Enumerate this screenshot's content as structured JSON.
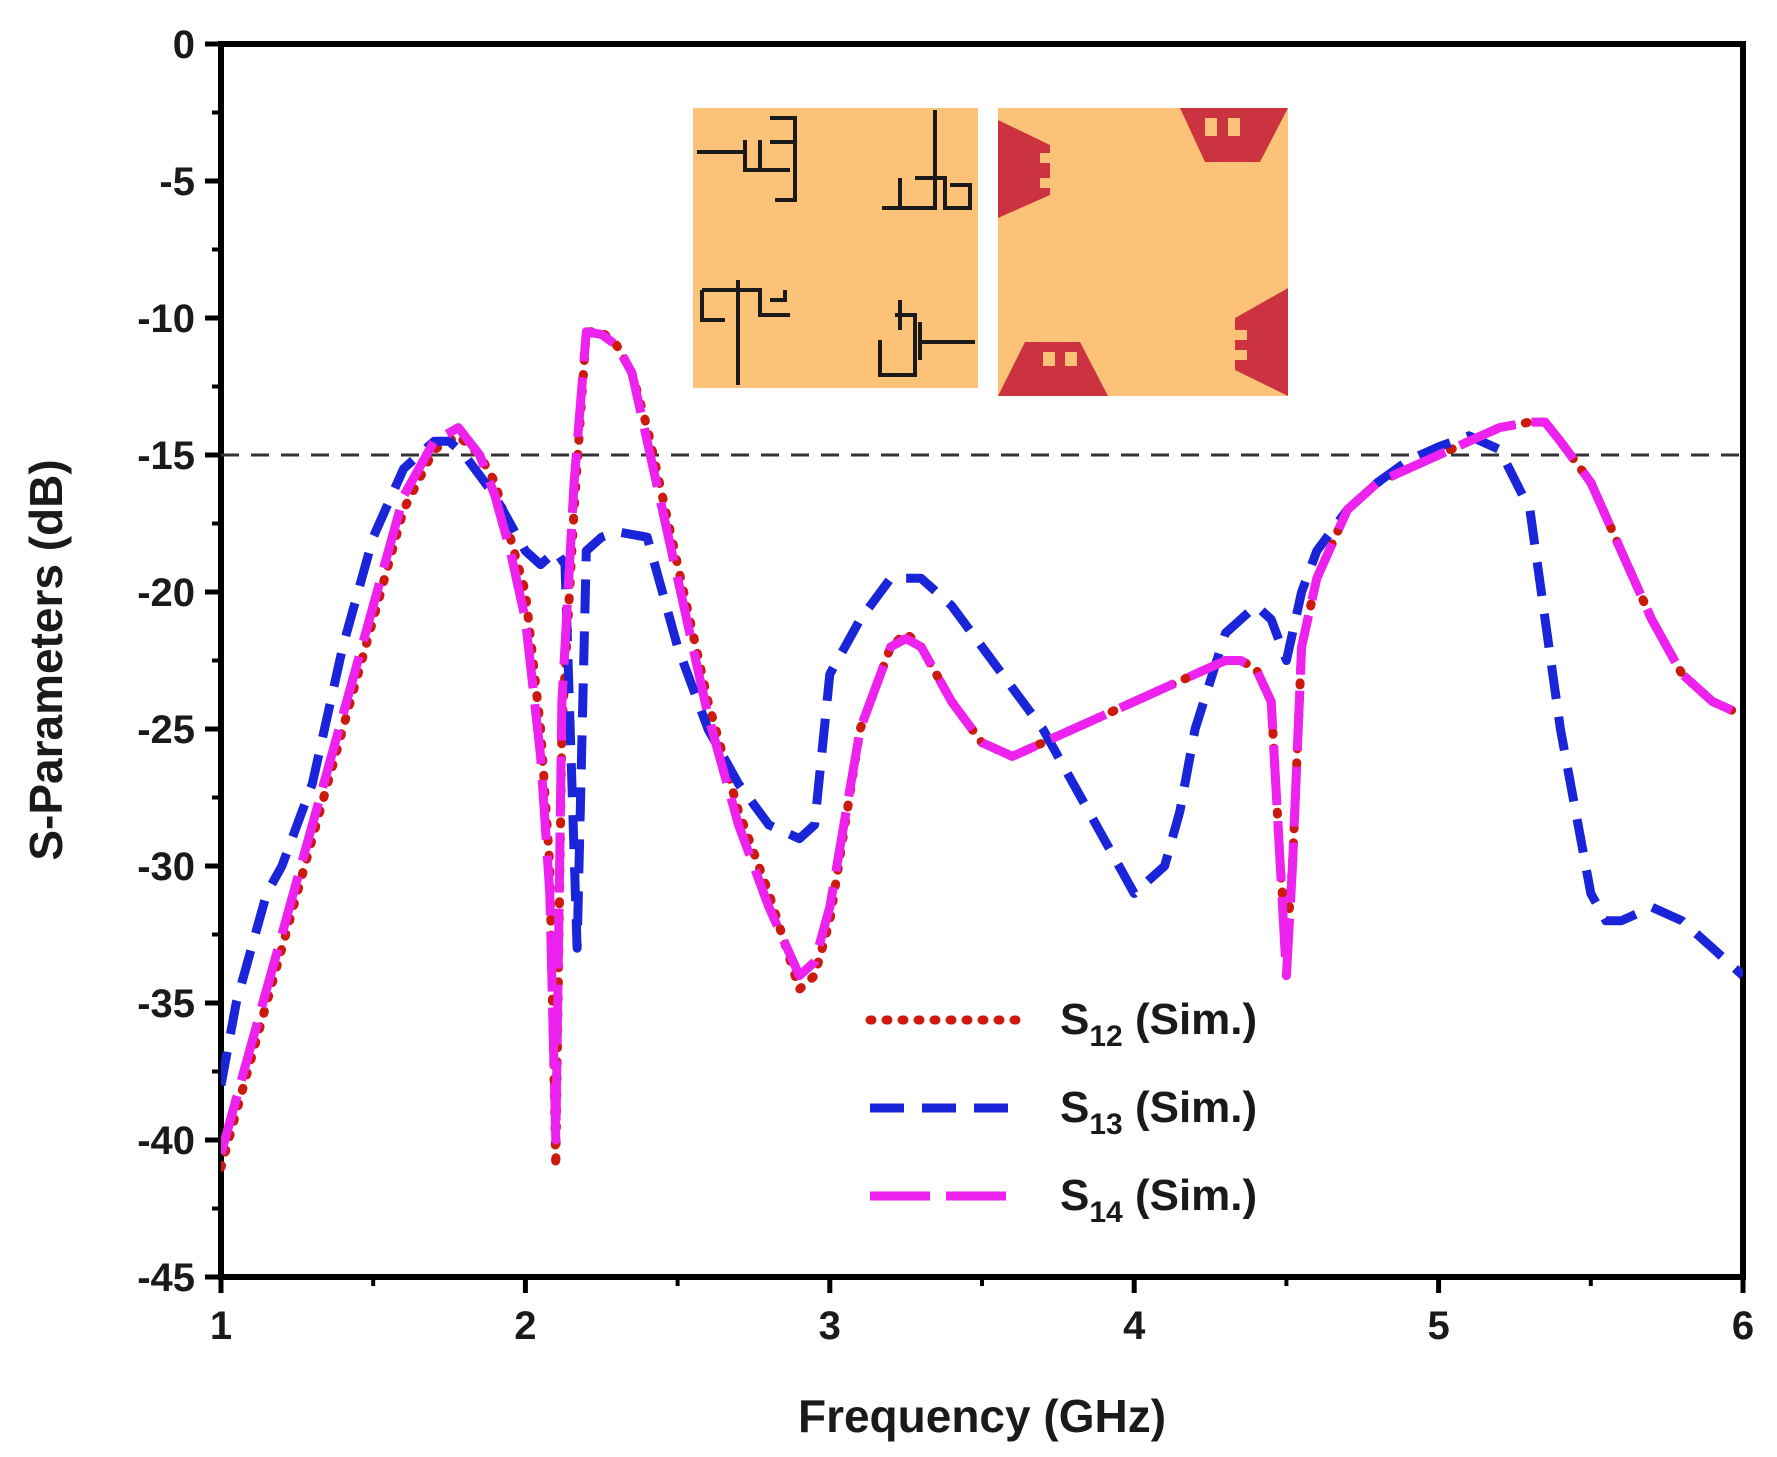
{
  "chart_data": {
    "type": "line",
    "title": "",
    "xlabel": "Frequency (GHz)",
    "ylabel": "S-Parameters (dB)",
    "xlim": [
      1,
      6
    ],
    "ylim": [
      -45,
      0
    ],
    "xticks": [
      1,
      2,
      3,
      4,
      5,
      6
    ],
    "yticks": [
      0,
      -5,
      -10,
      -15,
      -20,
      -25,
      -30,
      -35,
      -40,
      -45
    ],
    "reference_line": {
      "y": -15,
      "color": "#333333",
      "style": "dashed"
    },
    "legend": {
      "placement": "lower-center"
    },
    "series": [
      {
        "name": "S12 (Sim.)",
        "label_main": "S",
        "label_sub": "12",
        "label_suffix": " (Sim.)",
        "color": "#cc1a0f",
        "style": "dotted",
        "x": [
          1.0,
          1.1,
          1.2,
          1.3,
          1.4,
          1.5,
          1.6,
          1.7,
          1.78,
          1.85,
          1.9,
          1.95,
          2.0,
          2.05,
          2.08,
          2.1,
          2.12,
          2.16,
          2.2,
          2.25,
          2.3,
          2.35,
          2.4,
          2.5,
          2.6,
          2.7,
          2.8,
          2.9,
          2.95,
          3.0,
          3.1,
          3.2,
          3.25,
          3.3,
          3.4,
          3.5,
          3.6,
          3.7,
          3.8,
          3.9,
          4.0,
          4.1,
          4.2,
          4.3,
          4.35,
          4.4,
          4.45,
          4.48,
          4.5,
          4.52,
          4.55,
          4.6,
          4.7,
          4.8,
          4.9,
          5.0,
          5.1,
          5.2,
          5.3,
          5.35,
          5.4,
          5.5,
          5.6,
          5.7,
          5.8,
          5.9,
          6.0
        ],
        "y": [
          -41,
          -37,
          -33,
          -29,
          -25,
          -21,
          -17,
          -14.8,
          -14.3,
          -15,
          -16,
          -18,
          -20,
          -25,
          -30,
          -41,
          -25,
          -17,
          -10.5,
          -10.5,
          -11,
          -12,
          -14,
          -19,
          -24,
          -28,
          -31,
          -34.5,
          -34,
          -32,
          -25,
          -22,
          -21.5,
          -22,
          -24,
          -25.5,
          -26,
          -25.5,
          -25,
          -24.5,
          -24,
          -23.5,
          -23,
          -22.5,
          -22.5,
          -22.8,
          -24,
          -30,
          -33,
          -30,
          -22,
          -19.5,
          -17,
          -16,
          -15.5,
          -15,
          -14.5,
          -14,
          -13.8,
          -13.8,
          -14.5,
          -16,
          -18.5,
          -21,
          -23,
          -24,
          -24.5
        ]
      },
      {
        "name": "S13 (Sim.)",
        "label_main": "S",
        "label_sub": "13",
        "label_suffix": " (Sim.)",
        "color": "#1a24d9",
        "style": "dashed",
        "x": [
          1.0,
          1.05,
          1.1,
          1.15,
          1.2,
          1.3,
          1.4,
          1.5,
          1.6,
          1.7,
          1.75,
          1.8,
          1.9,
          2.0,
          2.05,
          2.1,
          2.13,
          2.17,
          2.2,
          2.25,
          2.3,
          2.4,
          2.5,
          2.6,
          2.7,
          2.8,
          2.9,
          2.95,
          3.0,
          3.1,
          3.2,
          3.3,
          3.4,
          3.5,
          3.6,
          3.7,
          3.8,
          3.9,
          4.0,
          4.1,
          4.15,
          4.2,
          4.3,
          4.4,
          4.45,
          4.5,
          4.55,
          4.6,
          4.7,
          4.8,
          4.9,
          5.0,
          5.1,
          5.2,
          5.3,
          5.35,
          5.4,
          5.45,
          5.5,
          5.55,
          5.6,
          5.7,
          5.8,
          5.9,
          6.0
        ],
        "y": [
          -38,
          -35,
          -33,
          -31,
          -30,
          -27,
          -22,
          -18,
          -15.5,
          -14.5,
          -14.5,
          -15,
          -16.5,
          -18.5,
          -19,
          -18.5,
          -19,
          -33,
          -18.5,
          -18,
          -17.8,
          -18,
          -22,
          -25,
          -27,
          -28.5,
          -29,
          -28.5,
          -23,
          -21,
          -19.5,
          -19.5,
          -20.5,
          -22,
          -23.5,
          -25,
          -27,
          -29,
          -31,
          -30,
          -28,
          -25,
          -21.5,
          -20.5,
          -21,
          -22.5,
          -20,
          -18.5,
          -17,
          -16,
          -15.2,
          -14.7,
          -14.3,
          -14.8,
          -17,
          -21,
          -25,
          -28,
          -31,
          -32,
          -32,
          -31.5,
          -32,
          -33,
          -34
        ]
      },
      {
        "name": "S14 (Sim.)",
        "label_main": "S",
        "label_sub": "14",
        "label_suffix": " (Sim.)",
        "color": "#ee22ee",
        "style": "long-dash",
        "x": [
          1.0,
          1.1,
          1.2,
          1.3,
          1.4,
          1.5,
          1.6,
          1.7,
          1.78,
          1.85,
          1.9,
          1.95,
          2.0,
          2.05,
          2.08,
          2.1,
          2.12,
          2.16,
          2.2,
          2.25,
          2.3,
          2.35,
          2.4,
          2.5,
          2.6,
          2.7,
          2.8,
          2.9,
          2.95,
          3.0,
          3.1,
          3.2,
          3.25,
          3.3,
          3.4,
          3.5,
          3.6,
          3.7,
          3.8,
          3.9,
          4.0,
          4.1,
          4.2,
          4.3,
          4.35,
          4.4,
          4.45,
          4.48,
          4.5,
          4.52,
          4.55,
          4.6,
          4.7,
          4.8,
          4.9,
          5.0,
          5.1,
          5.2,
          5.3,
          5.35,
          5.4,
          5.5,
          5.6,
          5.7,
          5.8,
          5.9,
          6.0
        ],
        "y": [
          -40.5,
          -36.5,
          -32.5,
          -28.5,
          -24.5,
          -20.5,
          -16.5,
          -14.5,
          -14,
          -15,
          -16.5,
          -18.5,
          -21,
          -26,
          -31,
          -40,
          -24,
          -16,
          -10.5,
          -10.6,
          -11,
          -12,
          -14.5,
          -19.5,
          -24.5,
          -28.5,
          -31.5,
          -34,
          -33.5,
          -31.5,
          -25,
          -22,
          -21.7,
          -22,
          -24,
          -25.5,
          -26,
          -25.5,
          -25,
          -24.5,
          -24,
          -23.5,
          -23,
          -22.5,
          -22.5,
          -22.8,
          -24,
          -30,
          -34,
          -30,
          -22,
          -19.5,
          -17,
          -16,
          -15.5,
          -15,
          -14.5,
          -14,
          -13.8,
          -13.8,
          -14.5,
          -16,
          -18.5,
          -21,
          -23,
          -24,
          -24.5
        ]
      }
    ],
    "inset": {
      "description_panels": 2
    }
  }
}
